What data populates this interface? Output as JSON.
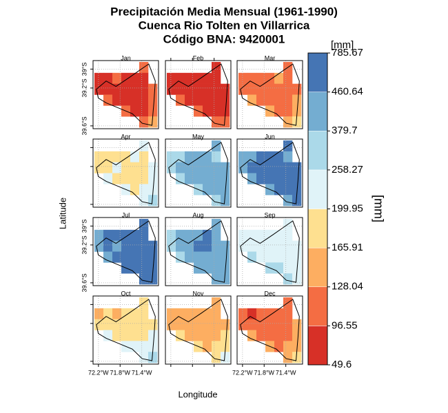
{
  "title_lines": [
    "Precipitación Media Mensual (1961-1990)",
    "Cuenca Rio Tolten en Villarrica",
    "Código BNA: 9420001"
  ],
  "x_label": "Longitude",
  "y_label": "Latitude",
  "legend": {
    "unit_label": "[mm]",
    "title": "[mm]",
    "breaks": [
      49.6,
      96.55,
      128.04,
      165.91,
      199.95,
      258.27,
      379.7,
      460.64,
      785.67
    ],
    "colors": [
      "#d73027",
      "#f46d43",
      "#fdae61",
      "#fee090",
      "#e0f3f8",
      "#abd9e9",
      "#74add1",
      "#4575b4"
    ]
  },
  "lon_range": [
    -72.3,
    -71.09
  ],
  "lat_range": [
    -39.63,
    -38.91
  ],
  "lon_ticks": [
    {
      "value": -72.2,
      "label": "72.2°W"
    },
    {
      "value": -71.8,
      "label": "71.8°W"
    },
    {
      "value": -71.4,
      "label": "71.4°W"
    }
  ],
  "lat_ticks": [
    {
      "value": -39,
      "label": "39°S"
    },
    {
      "value": -39.2,
      "label": "39.2°S"
    },
    {
      "value": -39.6,
      "label": "39.6°S"
    }
  ],
  "panels": [
    {
      "name": "Jan",
      "grid": [
        [
          null,
          null,
          null,
          null,
          null,
          112,
          null
        ],
        [
          73,
          73,
          112,
          73,
          73,
          73,
          null
        ],
        [
          73,
          73,
          73,
          73,
          73,
          73,
          112
        ],
        [
          null,
          112,
          73,
          73,
          73,
          73,
          112
        ],
        [
          null,
          null,
          null,
          112,
          73,
          73,
          112
        ],
        [
          null,
          null,
          null,
          null,
          null,
          112,
          147
        ]
      ]
    },
    {
      "name": "Feb",
      "grid": [
        [
          null,
          null,
          null,
          null,
          null,
          73,
          null
        ],
        [
          73,
          73,
          73,
          73,
          73,
          73,
          null
        ],
        [
          73,
          73,
          73,
          73,
          73,
          73,
          73
        ],
        [
          null,
          112,
          73,
          73,
          73,
          73,
          73
        ],
        [
          null,
          null,
          null,
          112,
          73,
          73,
          73
        ],
        [
          null,
          null,
          null,
          null,
          null,
          112,
          112
        ]
      ]
    },
    {
      "name": "Mar",
      "grid": [
        [
          null,
          null,
          null,
          null,
          null,
          112,
          null
        ],
        [
          112,
          112,
          112,
          112,
          147,
          112,
          null
        ],
        [
          112,
          112,
          112,
          112,
          112,
          112,
          112
        ],
        [
          null,
          147,
          112,
          112,
          112,
          112,
          147
        ],
        [
          null,
          null,
          null,
          147,
          112,
          112,
          147
        ],
        [
          null,
          null,
          null,
          null,
          null,
          147,
          183
        ]
      ]
    },
    {
      "name": "Apr",
      "grid": [
        [
          null,
          null,
          null,
          null,
          null,
          229,
          null
        ],
        [
          183,
          183,
          183,
          183,
          229,
          183,
          null
        ],
        [
          183,
          183,
          229,
          183,
          183,
          183,
          229
        ],
        [
          null,
          229,
          183,
          183,
          183,
          183,
          229
        ],
        [
          null,
          null,
          null,
          229,
          183,
          229,
          229
        ],
        [
          null,
          null,
          null,
          null,
          null,
          229,
          319
        ]
      ]
    },
    {
      "name": "May",
      "grid": [
        [
          null,
          null,
          null,
          null,
          null,
          420,
          null
        ],
        [
          319,
          319,
          420,
          420,
          420,
          319,
          null
        ],
        [
          319,
          420,
          420,
          420,
          420,
          420,
          420
        ],
        [
          null,
          319,
          420,
          420,
          420,
          420,
          420
        ],
        [
          null,
          null,
          null,
          319,
          420,
          420,
          420
        ],
        [
          null,
          null,
          null,
          null,
          null,
          319,
          420
        ]
      ]
    },
    {
      "name": "Jun",
      "grid": [
        [
          null,
          null,
          null,
          null,
          null,
          623,
          null
        ],
        [
          420,
          420,
          623,
          623,
          623,
          420,
          null
        ],
        [
          420,
          623,
          623,
          623,
          623,
          623,
          623
        ],
        [
          null,
          420,
          623,
          623,
          623,
          623,
          623
        ],
        [
          null,
          null,
          null,
          420,
          623,
          623,
          623
        ],
        [
          null,
          null,
          null,
          null,
          null,
          420,
          623
        ]
      ]
    },
    {
      "name": "Jul",
      "grid": [
        [
          null,
          null,
          null,
          null,
          null,
          623,
          null
        ],
        [
          420,
          623,
          623,
          623,
          623,
          623,
          null
        ],
        [
          420,
          623,
          420,
          623,
          623,
          623,
          623
        ],
        [
          null,
          420,
          623,
          623,
          623,
          623,
          623
        ],
        [
          null,
          null,
          null,
          623,
          623,
          623,
          623
        ],
        [
          null,
          null,
          null,
          null,
          null,
          623,
          623
        ]
      ]
    },
    {
      "name": "Aug",
      "grid": [
        [
          null,
          null,
          null,
          null,
          null,
          420,
          null
        ],
        [
          319,
          420,
          420,
          420,
          623,
          420,
          null
        ],
        [
          319,
          420,
          420,
          623,
          623,
          420,
          420
        ],
        [
          null,
          319,
          420,
          420,
          420,
          420,
          420
        ],
        [
          null,
          null,
          null,
          420,
          420,
          420,
          420
        ],
        [
          null,
          null,
          null,
          null,
          null,
          420,
          420
        ]
      ]
    },
    {
      "name": "Sep",
      "grid": [
        [
          null,
          null,
          null,
          null,
          null,
          229,
          null
        ],
        [
          229,
          229,
          229,
          229,
          229,
          229,
          null
        ],
        [
          229,
          229,
          229,
          229,
          229,
          229,
          229
        ],
        [
          null,
          319,
          229,
          229,
          229,
          229,
          229
        ],
        [
          null,
          null,
          null,
          319,
          319,
          229,
          229
        ],
        [
          null,
          null,
          null,
          null,
          null,
          319,
          229
        ]
      ]
    },
    {
      "name": "Oct",
      "grid": [
        [
          null,
          null,
          null,
          null,
          null,
          183,
          null
        ],
        [
          147,
          183,
          147,
          183,
          183,
          183,
          null
        ],
        [
          183,
          183,
          183,
          183,
          183,
          183,
          183
        ],
        [
          null,
          229,
          183,
          183,
          183,
          183,
          229
        ],
        [
          null,
          null,
          null,
          229,
          229,
          229,
          229
        ],
        [
          null,
          null,
          null,
          null,
          null,
          229,
          319
        ]
      ]
    },
    {
      "name": "Nov",
      "grid": [
        [
          null,
          null,
          null,
          null,
          null,
          147,
          null
        ],
        [
          147,
          147,
          147,
          147,
          147,
          147,
          null
        ],
        [
          147,
          147,
          147,
          147,
          147,
          147,
          147
        ],
        [
          null,
          183,
          147,
          147,
          147,
          147,
          183
        ],
        [
          null,
          null,
          null,
          183,
          147,
          183,
          183
        ],
        [
          null,
          null,
          null,
          null,
          null,
          183,
          229
        ]
      ]
    },
    {
      "name": "Dec",
      "grid": [
        [
          null,
          null,
          null,
          null,
          null,
          112,
          null
        ],
        [
          112,
          73,
          112,
          112,
          112,
          112,
          null
        ],
        [
          112,
          112,
          112,
          112,
          112,
          112,
          147
        ],
        [
          null,
          147,
          112,
          112,
          112,
          112,
          147
        ],
        [
          null,
          null,
          null,
          147,
          112,
          147,
          147
        ],
        [
          null,
          null,
          null,
          null,
          null,
          147,
          183
        ]
      ]
    }
  ]
}
